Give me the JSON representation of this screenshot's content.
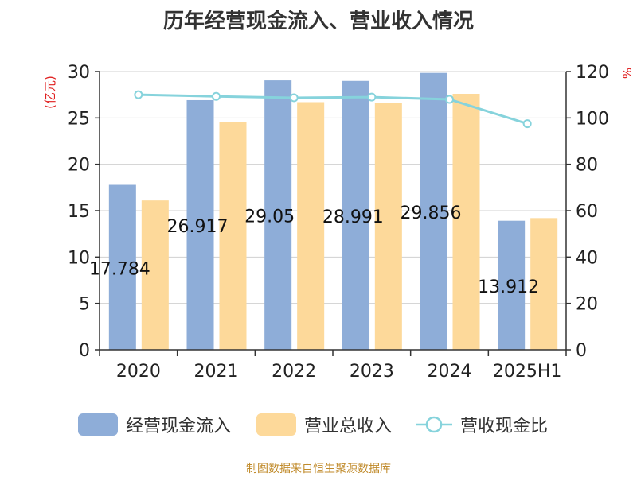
{
  "title": "历年经营现金流入、营业收入情况",
  "source": "制图数据来自恒生聚源数据库",
  "colors": {
    "cash_inflow": "#8eadd8",
    "revenue": "#fdd99a",
    "ratio": "#86d3dc",
    "left_unit": "#e02020",
    "right_unit": "#e02020",
    "source": "#c08a2a"
  },
  "legend": {
    "cash_inflow": "经营现金流入",
    "revenue": "营业总收入",
    "ratio": "营收现金比"
  },
  "chart_data": {
    "type": "bar",
    "title": "历年经营现金流入、营业收入情况",
    "categories": [
      "2020",
      "2021",
      "2022",
      "2023",
      "2024",
      "2025H1"
    ],
    "left_axis": {
      "unit": "(亿元)",
      "ylim": [
        0,
        30
      ],
      "ticks": [
        "0",
        "5",
        "10",
        "15",
        "20",
        "25",
        "30"
      ]
    },
    "right_axis": {
      "unit": "%",
      "ylim": [
        0,
        120
      ],
      "ticks": [
        "0",
        "20",
        "40",
        "60",
        "80",
        "100",
        "120"
      ]
    },
    "grid": true,
    "legend_position": "bottom",
    "series": [
      {
        "name": "经营现金流入",
        "axis": "left",
        "kind": "bar",
        "values": [
          17.784,
          26.917,
          29.05,
          28.991,
          29.856,
          13.912
        ],
        "labels": [
          "17.784",
          "26.917",
          "29.05",
          "28.991",
          "29.856",
          "13.912"
        ]
      },
      {
        "name": "营业总收入",
        "axis": "left",
        "kind": "bar",
        "values": [
          16.1,
          24.6,
          26.7,
          26.6,
          27.6,
          14.2
        ]
      },
      {
        "name": "营收现金比",
        "axis": "right",
        "kind": "line",
        "values": [
          110,
          109.3,
          108.7,
          109,
          108,
          97.5
        ]
      }
    ]
  }
}
